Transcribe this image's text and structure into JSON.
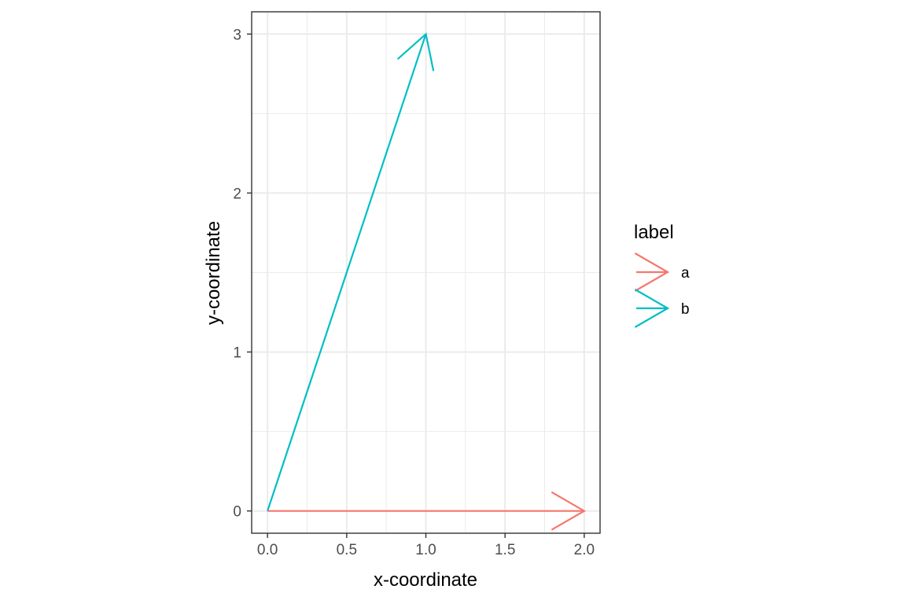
{
  "chart_data": {
    "type": "line",
    "subtype": "vector-segments",
    "xlabel": "x-coordinate",
    "ylabel": "y-coordinate",
    "xlim": [
      -0.1,
      2.1
    ],
    "ylim": [
      -0.14,
      3.14
    ],
    "x_ticks": [
      0.0,
      0.5,
      1.0,
      1.5,
      2.0
    ],
    "x_tick_labels": [
      "0.0",
      "0.5",
      "1.0",
      "1.5",
      "2.0"
    ],
    "y_ticks": [
      0,
      1,
      2,
      3
    ],
    "y_tick_labels": [
      "0",
      "1",
      "2",
      "3"
    ],
    "grid": true,
    "legend": {
      "title": "label",
      "position": "right"
    },
    "series": [
      {
        "name": "a",
        "color": "#F8766D",
        "x": [
          0,
          2
        ],
        "y": [
          0,
          0
        ]
      },
      {
        "name": "b",
        "color": "#00BFC4",
        "x": [
          0,
          1
        ],
        "y": [
          0,
          3
        ]
      }
    ]
  }
}
